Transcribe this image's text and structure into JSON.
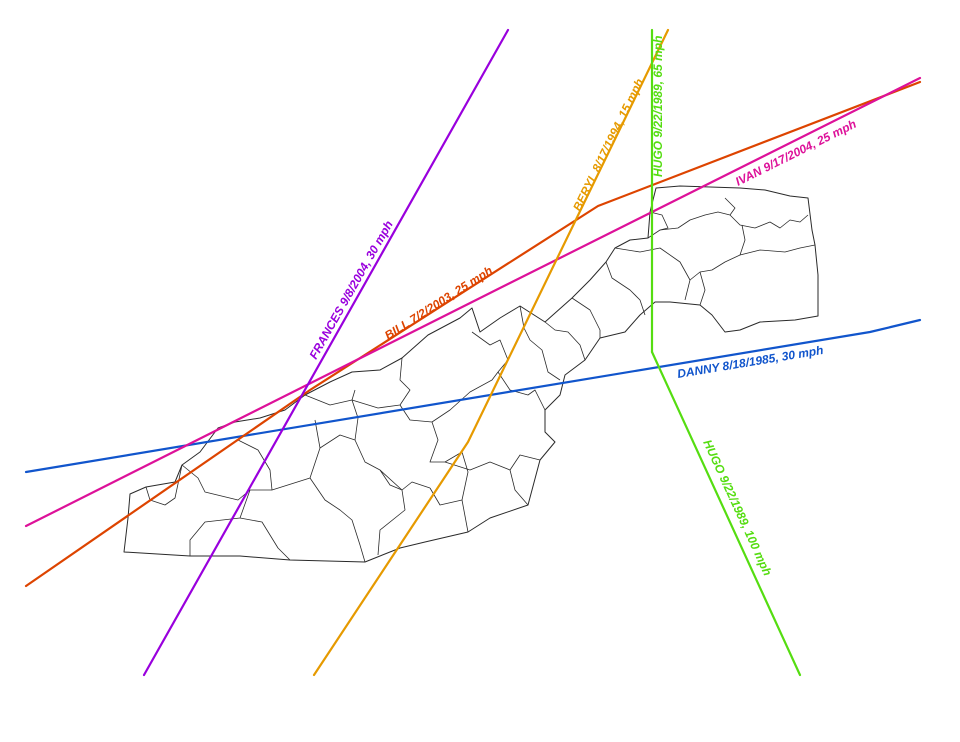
{
  "map": {
    "tracks": [
      {
        "id": "frances",
        "label": "FRANCES 9/8/2004, 30 mph",
        "color": "#9900dd"
      },
      {
        "id": "beryl",
        "label": "BERYL 8/17/1994, 15 mph",
        "color": "#e69a00"
      },
      {
        "id": "hugo-north",
        "label": "HUGO 9/22/1989, 65 mph",
        "color": "#55dd11"
      },
      {
        "id": "hugo-south",
        "label": "HUGO 9/22/1989, 100 mph",
        "color": "#55dd11"
      },
      {
        "id": "bill",
        "label": "BILL 7/2/2003, 25 mph",
        "color": "#dd4400"
      },
      {
        "id": "ivan",
        "label": "IVAN 9/17/2004, 25 mph",
        "color": "#dd1199"
      },
      {
        "id": "danny",
        "label": "DANNY 8/18/1985, 30 mph",
        "color": "#1155cc"
      }
    ]
  }
}
